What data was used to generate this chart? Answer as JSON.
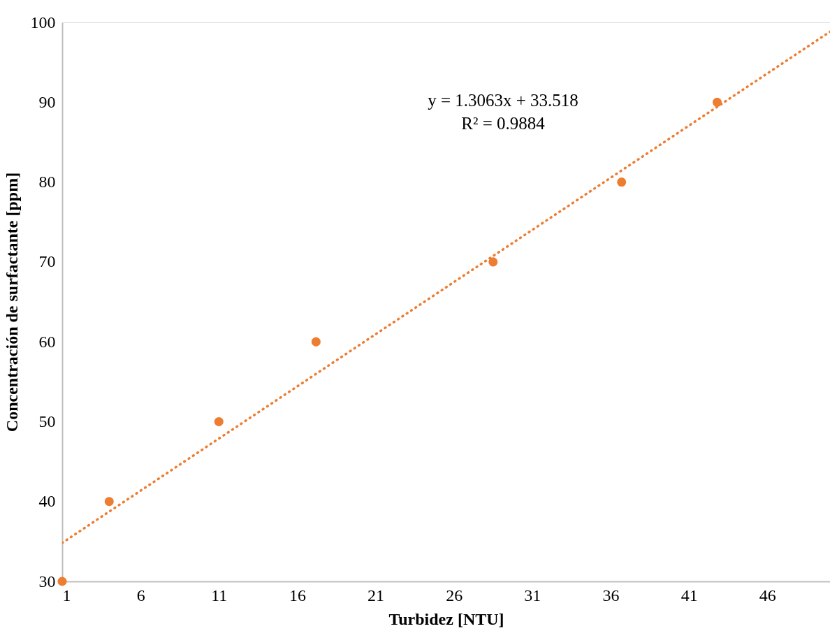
{
  "chart_data": {
    "type": "scatter",
    "xlabel": "Turbidez [NTU]",
    "ylabel": "Concentración de surfactante [ppm]",
    "x": [
      1,
      4,
      11,
      17.2,
      28.5,
      36.7,
      42.8
    ],
    "series": [
      {
        "color": "#ed7d31",
        "values": [
          30,
          40,
          50,
          60,
          70,
          80,
          90
        ]
      },
      {
        "type": "line",
        "color": "#ed7d31",
        "line_style": "dotted",
        "marker": "none",
        "x": [
          1,
          50
        ],
        "values": [
          34.82,
          98.83
        ]
      }
    ],
    "marker": "circle",
    "xlim": [
      1,
      50
    ],
    "xticks": [
      1,
      6,
      11,
      16,
      21,
      26,
      31,
      36,
      41,
      46
    ],
    "ylim": [
      30,
      100
    ],
    "yticks": [
      30,
      40,
      50,
      60,
      70,
      80,
      90,
      100
    ],
    "grid": false,
    "annotations": [
      "y = 1.3063x + 33.518",
      "R² = 0.9884"
    ]
  }
}
